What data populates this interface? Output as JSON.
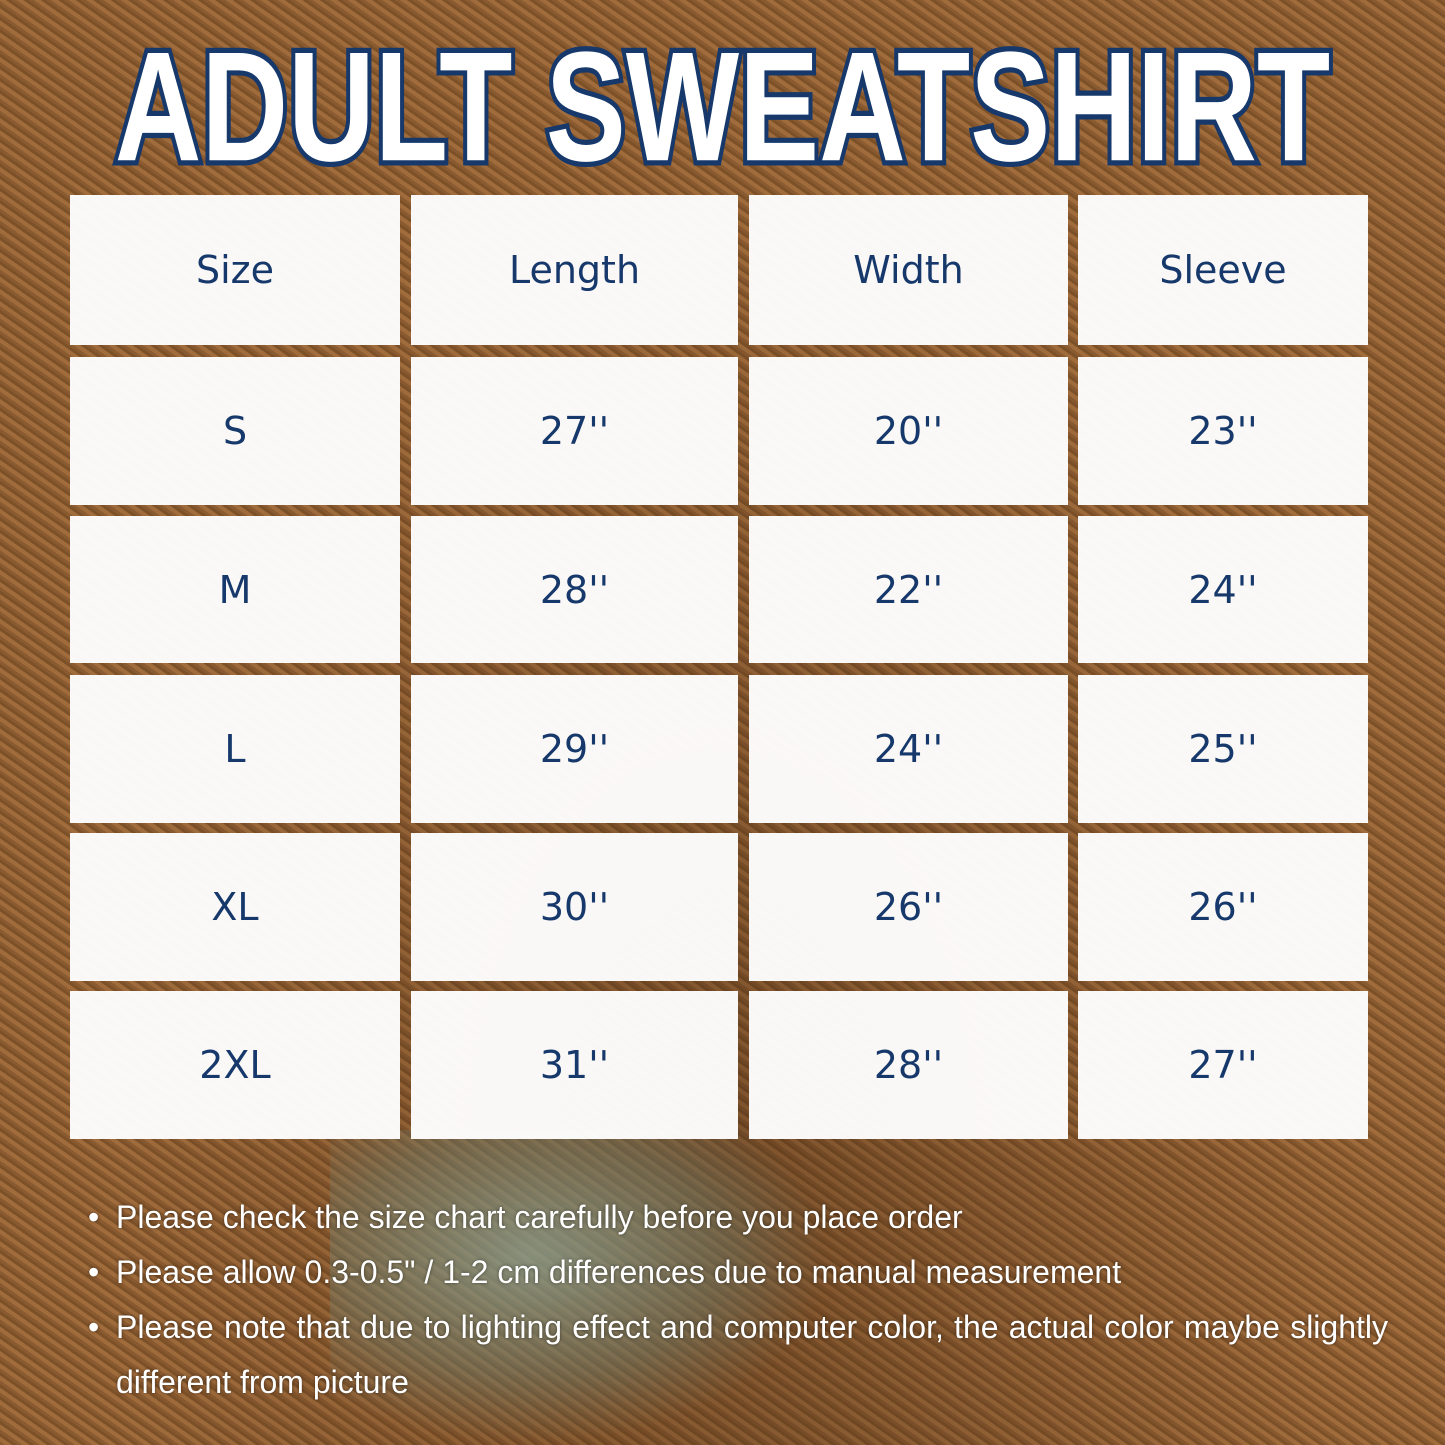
{
  "title": "ADULT SWEATSHIRT",
  "table": {
    "headers": [
      "Size",
      "Length",
      "Width",
      "Sleeve"
    ],
    "rows": [
      [
        "S",
        "27''",
        "20''",
        "23''"
      ],
      [
        "M",
        "28''",
        "22''",
        "24''"
      ],
      [
        "L",
        "29''",
        "24''",
        "25''"
      ],
      [
        "XL",
        "30''",
        "26''",
        "26''"
      ],
      [
        "2XL",
        "31''",
        "28''",
        "27''"
      ]
    ]
  },
  "notes": [
    "Please check the size chart carefully before you place order",
    "Please allow 0.3-0.5\" / 1-2 cm differences due to manual measurement",
    "Please note that due to lighting effect and computer color, the actual color maybe slightly different from picture"
  ],
  "colors": {
    "text": "#16386b",
    "cell": "#ffffff",
    "background": "#93653a"
  }
}
